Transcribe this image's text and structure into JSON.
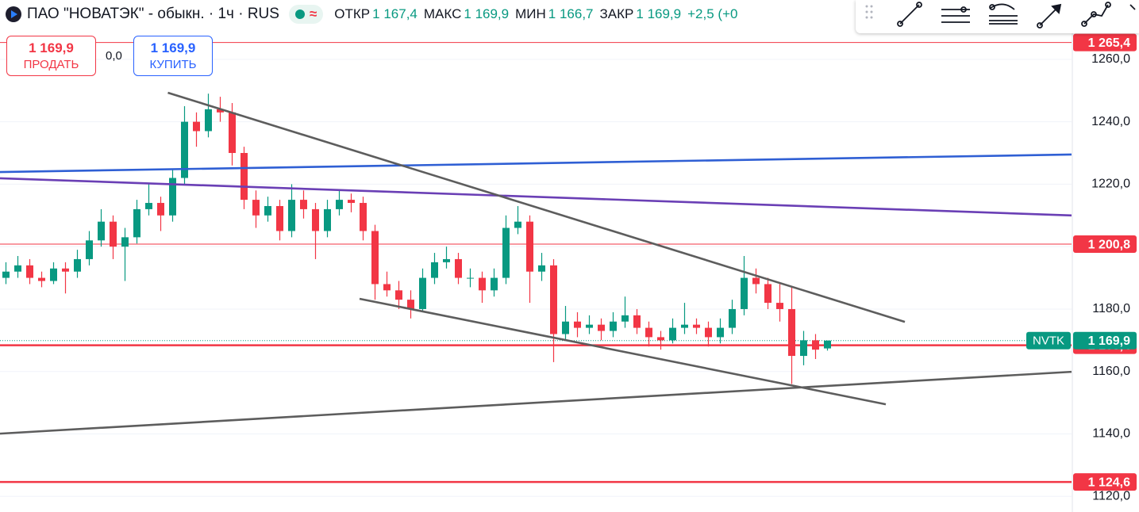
{
  "header": {
    "symbol": "ПАО \"НОВАТЭК\" - обыкн. · 1ч · RUS",
    "ohlc": [
      {
        "label": "ОТКР",
        "value": "1 167,4"
      },
      {
        "label": "МАКС",
        "value": "1 169,9"
      },
      {
        "label": "МИН",
        "value": "1 166,7"
      },
      {
        "label": "ЗАКР",
        "value": "1 169,9"
      }
    ],
    "change": "+2,5 (+0"
  },
  "trade": {
    "sell_price": "1 169,9",
    "sell_label": "ПРОДАТЬ",
    "spread": "0,0",
    "buy_price": "1 169,9",
    "buy_label": "КУПИТЬ"
  },
  "chart_data": {
    "type": "candlestick",
    "xlim": [
      -0.5,
      89.5
    ],
    "ylim": [
      1115,
      1279
    ],
    "yticks": [
      {
        "value": 1120,
        "label": "1120,0"
      },
      {
        "value": 1140,
        "label": "1140,0"
      },
      {
        "value": 1160,
        "label": "1160,0"
      },
      {
        "value": 1180,
        "label": "1180,0"
      },
      {
        "value": 1200,
        "label": "1200,0"
      },
      {
        "value": 1220,
        "label": "1220,0"
      },
      {
        "value": 1240,
        "label": "1240,0"
      },
      {
        "value": 1260,
        "label": "1260,0"
      }
    ],
    "grid": true,
    "up_color": "#089981",
    "down_color": "#f23645",
    "candles": [
      [
        1190,
        1195,
        1188,
        1192
      ],
      [
        1192,
        1197,
        1190,
        1194
      ],
      [
        1194,
        1196,
        1188,
        1190
      ],
      [
        1190,
        1192,
        1187,
        1189
      ],
      [
        1189,
        1195,
        1188,
        1193
      ],
      [
        1193,
        1195,
        1185,
        1192
      ],
      [
        1192,
        1199,
        1190,
        1196
      ],
      [
        1196,
        1205,
        1194,
        1202
      ],
      [
        1202,
        1212,
        1200,
        1208
      ],
      [
        1208,
        1210,
        1196,
        1200
      ],
      [
        1200,
        1206,
        1189,
        1203
      ],
      [
        1203,
        1215,
        1201,
        1212
      ],
      [
        1212,
        1220,
        1210,
        1214
      ],
      [
        1214,
        1216,
        1205,
        1210
      ],
      [
        1210,
        1225,
        1208,
        1222
      ],
      [
        1222,
        1245,
        1220,
        1240
      ],
      [
        1240,
        1243,
        1232,
        1237
      ],
      [
        1237,
        1249,
        1235,
        1244
      ],
      [
        1244,
        1248,
        1240,
        1243
      ],
      [
        1243,
        1246,
        1226,
        1230
      ],
      [
        1230,
        1232,
        1212,
        1215
      ],
      [
        1215,
        1218,
        1206,
        1210
      ],
      [
        1210,
        1216,
        1208,
        1213
      ],
      [
        1213,
        1215,
        1202,
        1205
      ],
      [
        1205,
        1220,
        1203,
        1215
      ],
      [
        1215,
        1218,
        1209,
        1212
      ],
      [
        1212,
        1214,
        1196,
        1205
      ],
      [
        1205,
        1215,
        1203,
        1212
      ],
      [
        1212,
        1218,
        1210,
        1215
      ],
      [
        1215,
        1217,
        1211,
        1214
      ],
      [
        1214,
        1216,
        1202,
        1205
      ],
      [
        1205,
        1207,
        1183,
        1188
      ],
      [
        1188,
        1192,
        1184,
        1186
      ],
      [
        1186,
        1189,
        1180,
        1183
      ],
      [
        1183,
        1186,
        1177,
        1180
      ],
      [
        1180,
        1193,
        1179,
        1190
      ],
      [
        1190,
        1198,
        1188,
        1195
      ],
      [
        1195,
        1200,
        1193,
        1196
      ],
      [
        1196,
        1198,
        1188,
        1190
      ],
      [
        1190,
        1193,
        1187,
        1190
      ],
      [
        1190,
        1192,
        1182,
        1186
      ],
      [
        1186,
        1193,
        1184,
        1190
      ],
      [
        1190,
        1210,
        1188,
        1206
      ],
      [
        1206,
        1213,
        1204,
        1208
      ],
      [
        1208,
        1210,
        1182,
        1192
      ],
      [
        1192,
        1198,
        1189,
        1194
      ],
      [
        1194,
        1196,
        1163,
        1172
      ],
      [
        1172,
        1181,
        1170,
        1176
      ],
      [
        1176,
        1179,
        1171,
        1174
      ],
      [
        1174,
        1178,
        1172,
        1175
      ],
      [
        1175,
        1177,
        1170,
        1173
      ],
      [
        1173,
        1179,
        1171,
        1176
      ],
      [
        1176,
        1184,
        1174,
        1178
      ],
      [
        1178,
        1180,
        1172,
        1174
      ],
      [
        1174,
        1176,
        1168,
        1171
      ],
      [
        1171,
        1173,
        1167,
        1170
      ],
      [
        1170,
        1177,
        1169,
        1174
      ],
      [
        1174,
        1182,
        1172,
        1175
      ],
      [
        1175,
        1177,
        1172,
        1174
      ],
      [
        1174,
        1176,
        1168,
        1171
      ],
      [
        1171,
        1177,
        1169,
        1174
      ],
      [
        1174,
        1183,
        1172,
        1180
      ],
      [
        1180,
        1197,
        1178,
        1190
      ],
      [
        1190,
        1193,
        1185,
        1188
      ],
      [
        1188,
        1190,
        1180,
        1182
      ],
      [
        1182,
        1188,
        1176,
        1180
      ],
      [
        1180,
        1187,
        1156,
        1165
      ],
      [
        1165,
        1173,
        1162,
        1170
      ],
      [
        1170,
        1172,
        1164,
        1167
      ],
      [
        1167.4,
        1169.9,
        1166.7,
        1169.9
      ]
    ],
    "trendlines": [
      {
        "x": [
          -0.5,
          89.5
        ],
        "y": [
          1223.9,
          1229.5
        ],
        "color": "#2f5fd4"
      },
      {
        "x": [
          -0.5,
          89.5
        ],
        "y": [
          1221.9,
          1210
        ],
        "color": "#6a3fb5"
      },
      {
        "x": [
          13.6,
          75.5
        ],
        "y": [
          1249.3,
          1175.9
        ],
        "color": "#5d5d5d"
      },
      {
        "x": [
          29.7,
          73.9
        ],
        "y": [
          1183.3,
          1149.5
        ],
        "color": "#5d5d5d"
      },
      {
        "x": [
          -0.5,
          89.5
        ],
        "y": [
          1140.1,
          1159.9
        ],
        "color": "#5d5d5d"
      }
    ],
    "levels": [
      {
        "value": 1265.4,
        "label": "1 265,4",
        "color": "#f23645",
        "style": "thin"
      },
      {
        "value": 1200.8,
        "label": "1 200,8",
        "color": "#f23645",
        "style": "thin"
      },
      {
        "value": 1168.4,
        "label": "1 168,4",
        "color": "#f23645",
        "style": "thick"
      },
      {
        "value": 1124.6,
        "label": "1 124,6",
        "color": "#f23645",
        "style": "thick"
      }
    ],
    "last_price": {
      "value": 1169.9,
      "label": "1 169,9",
      "symbol": "NVTK",
      "color": "#089981"
    }
  }
}
